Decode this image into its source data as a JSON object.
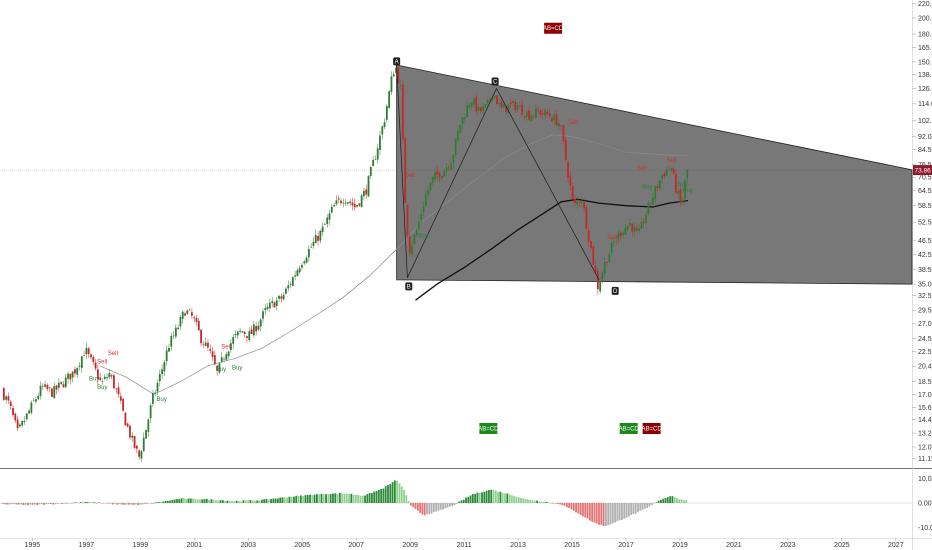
{
  "chart_data": {
    "type": "candlestick",
    "y_scale": "log",
    "ylim": [
      10.5,
      225
    ],
    "xlim": [
      1993.8,
      2027.6
    ],
    "price_ticks": [
      "11.15",
      "12.05",
      "13.20",
      "14.40",
      "15.60",
      "17.00",
      "18.50",
      "20.45",
      "22.50",
      "24.50",
      "27.00",
      "29.50",
      "32.50",
      "35.00",
      "38.50",
      "42.50",
      "46.50",
      "52.50",
      "58.50",
      "64.50",
      "70.50",
      "76.50",
      "84.50",
      "92.00",
      "102.00",
      "114.00",
      "126.00",
      "138.00",
      "150.00",
      "165.00",
      "180.00",
      "200.00",
      "220.00"
    ],
    "year_ticks": [
      "1995",
      "1997",
      "1999",
      "2001",
      "2003",
      "2005",
      "2007",
      "2009",
      "2011",
      "2013",
      "2015",
      "2017",
      "2019",
      "2021",
      "2023",
      "2025",
      "2027"
    ],
    "current_price": "73.86",
    "colors": {
      "up": "#2e7d32",
      "down": "#c62828",
      "wedge": "#444444",
      "badge_green": "#1b8a1b",
      "badge_red": "#8b0000"
    },
    "prices": [
      [
        1993.9,
        17.5
      ],
      [
        1994.2,
        15.8
      ],
      [
        1994.5,
        13.2
      ],
      [
        1994.8,
        14.6
      ],
      [
        1995.1,
        16.2
      ],
      [
        1995.4,
        17.8
      ],
      [
        1995.8,
        17.2
      ],
      [
        1996.2,
        18.4
      ],
      [
        1996.6,
        19.8
      ],
      [
        1997.0,
        22.8
      ],
      [
        1997.3,
        20.5
      ],
      [
        1997.6,
        18.2
      ],
      [
        1997.9,
        19.5
      ],
      [
        1998.2,
        17.0
      ],
      [
        1998.5,
        14.2
      ],
      [
        1998.8,
        12.2
      ],
      [
        1999.0,
        11.3
      ],
      [
        1999.25,
        13.5
      ],
      [
        1999.5,
        16.5
      ],
      [
        1999.8,
        19.5
      ],
      [
        2000.1,
        23.5
      ],
      [
        2000.4,
        26.0
      ],
      [
        2000.7,
        29.5
      ],
      [
        2001.0,
        28.0
      ],
      [
        2001.3,
        24.5
      ],
      [
        2001.6,
        22.5
      ],
      [
        2001.9,
        19.5
      ],
      [
        2002.2,
        22.5
      ],
      [
        2002.5,
        24.5
      ],
      [
        2002.8,
        25.8
      ],
      [
        2003.1,
        25.0
      ],
      [
        2003.4,
        27.0
      ],
      [
        2003.7,
        29.5
      ],
      [
        2004.0,
        31.0
      ],
      [
        2004.3,
        32.0
      ],
      [
        2004.7,
        36.5
      ],
      [
        2005.0,
        40.5
      ],
      [
        2005.4,
        45.0
      ],
      [
        2005.8,
        50.0
      ],
      [
        2006.2,
        58.0
      ],
      [
        2006.6,
        62.0
      ],
      [
        2007.0,
        58.0
      ],
      [
        2007.4,
        64.5
      ],
      [
        2007.8,
        84.0
      ],
      [
        2008.1,
        104.0
      ],
      [
        2008.4,
        140.0
      ],
      [
        2008.5,
        146.0
      ],
      [
        2008.7,
        125.0
      ],
      [
        2008.85,
        62.0
      ],
      [
        2009.0,
        43.5
      ],
      [
        2009.3,
        50.0
      ],
      [
        2009.6,
        62.0
      ],
      [
        2009.9,
        70.0
      ],
      [
        2010.3,
        74.0
      ],
      [
        2010.6,
        80.0
      ],
      [
        2010.9,
        100.0
      ],
      [
        2011.3,
        118.0
      ],
      [
        2011.6,
        108.0
      ],
      [
        2011.9,
        112.0
      ],
      [
        2012.1,
        124.0
      ],
      [
        2012.4,
        110.0
      ],
      [
        2012.7,
        112.0
      ],
      [
        2013.0,
        113.0
      ],
      [
        2013.4,
        106.0
      ],
      [
        2013.8,
        108.0
      ],
      [
        2014.2,
        106.0
      ],
      [
        2014.6,
        100.0
      ],
      [
        2014.9,
        72.0
      ],
      [
        2015.1,
        58.0
      ],
      [
        2015.4,
        62.0
      ],
      [
        2015.7,
        46.0
      ],
      [
        2016.0,
        34.5
      ],
      [
        2016.3,
        41.0
      ],
      [
        2016.6,
        46.0
      ],
      [
        2016.9,
        50.0
      ],
      [
        2017.2,
        52.0
      ],
      [
        2017.5,
        48.0
      ],
      [
        2017.8,
        56.0
      ],
      [
        2018.1,
        64.0
      ],
      [
        2018.4,
        72.0
      ],
      [
        2018.7,
        76.0
      ],
      [
        2018.9,
        65.0
      ],
      [
        2019.1,
        58.0
      ],
      [
        2019.3,
        73.86
      ]
    ],
    "ma_black": [
      [
        2009.2,
        31.5
      ],
      [
        2010.0,
        35.0
      ],
      [
        2011.0,
        39.0
      ],
      [
        2012.0,
        44.0
      ],
      [
        2013.0,
        50.0
      ],
      [
        2014.0,
        56.0
      ],
      [
        2014.6,
        60.0
      ],
      [
        2015.2,
        61.0
      ],
      [
        2016.0,
        59.5
      ],
      [
        2017.0,
        58.5
      ],
      [
        2018.0,
        58.0
      ],
      [
        2018.6,
        59.5
      ],
      [
        2019.3,
        60.5
      ]
    ],
    "ma_gray": [
      [
        1997.5,
        20.5
      ],
      [
        1998.5,
        19.0
      ],
      [
        1999.5,
        17.0
      ],
      [
        2000.5,
        18.5
      ],
      [
        2001.5,
        20.5
      ],
      [
        2002.5,
        21.5
      ],
      [
        2003.5,
        23.0
      ],
      [
        2004.5,
        25.5
      ],
      [
        2005.5,
        28.5
      ],
      [
        2006.5,
        32.0
      ],
      [
        2007.5,
        37.0
      ],
      [
        2008.5,
        44.0
      ],
      [
        2009.5,
        53.0
      ],
      [
        2010.5,
        61.0
      ],
      [
        2011.5,
        70.0
      ],
      [
        2012.5,
        80.0
      ],
      [
        2013.5,
        88.0
      ],
      [
        2014.3,
        93.0
      ],
      [
        2015.0,
        92.0
      ],
      [
        2016.0,
        88.0
      ],
      [
        2017.0,
        83.0
      ],
      [
        2018.0,
        82.0
      ],
      [
        2019.3,
        81.0
      ]
    ],
    "wedge": {
      "upper": [
        [
          2008.5,
          147.0
        ],
        [
          2027.6,
          74.0
        ]
      ],
      "lower": [
        [
          2008.5,
          36.0
        ],
        [
          2027.6,
          35.0
        ]
      ]
    },
    "zigzag": [
      [
        2008.5,
        147.0
      ],
      [
        2008.9,
        36.5
      ],
      [
        2012.2,
        126.0
      ],
      [
        2016.0,
        36.0
      ]
    ],
    "pattern_points": [
      {
        "label": "A",
        "x": 2008.5,
        "y": 150.5
      },
      {
        "label": "B",
        "x": 2008.95,
        "y": 34.5
      },
      {
        "label": "C",
        "x": 2012.15,
        "y": 132.0
      },
      {
        "label": "D",
        "x": 2016.6,
        "y": 33.5
      }
    ],
    "badges": [
      {
        "label": "AB=CD",
        "x": 2014.3,
        "y": 187.0,
        "color": "red"
      },
      {
        "label": "AB=CD",
        "x": 2011.9,
        "y": 13.6,
        "color": "green"
      },
      {
        "label": "AB=CD",
        "x": 2017.1,
        "y": 13.6,
        "color": "green"
      },
      {
        "label": "AB=CD",
        "x": 2017.95,
        "y": 13.6,
        "color": "red"
      }
    ],
    "signals": [
      {
        "label": "Sell",
        "x": 1997.8,
        "y": 22.0,
        "color": "red"
      },
      {
        "label": "Sell",
        "x": 1997.4,
        "y": 20.8,
        "color": "red"
      },
      {
        "label": "Buy",
        "x": 1997.1,
        "y": 18.6,
        "color": "green"
      },
      {
        "label": "Buy",
        "x": 1997.4,
        "y": 17.6,
        "color": "green"
      },
      {
        "label": "Sell",
        "x": 2002.0,
        "y": 23.0,
        "color": "red"
      },
      {
        "label": "Buy",
        "x": 2001.8,
        "y": 19.8,
        "color": "green"
      },
      {
        "label": "Buy",
        "x": 2002.4,
        "y": 20.0,
        "color": "green"
      },
      {
        "label": "Buy",
        "x": 1999.6,
        "y": 16.3,
        "color": "green"
      },
      {
        "label": "Sell",
        "x": 2008.8,
        "y": 70.5,
        "color": "red"
      },
      {
        "label": "Buy",
        "x": 2009.3,
        "y": 47.5,
        "color": "green"
      },
      {
        "label": "Sell",
        "x": 2014.85,
        "y": 100.0,
        "color": "red"
      },
      {
        "label": "Sell",
        "x": 2016.3,
        "y": 47.0,
        "color": "red"
      },
      {
        "label": "Sell",
        "x": 2017.4,
        "y": 74.0,
        "color": "red"
      },
      {
        "label": "Buy",
        "x": 2017.6,
        "y": 65.5,
        "color": "green"
      },
      {
        "label": "Sell",
        "x": 2018.5,
        "y": 78.0,
        "color": "red"
      },
      {
        "label": "Buy",
        "x": 2018.9,
        "y": 66.5,
        "color": "green"
      },
      {
        "label": "Buy",
        "x": 2019.1,
        "y": 64.0,
        "color": "green"
      }
    ],
    "oscillator": {
      "ylim": [
        -13.5,
        13.5
      ],
      "ticks": [
        "10.00",
        "0.00",
        "-10.00"
      ],
      "values": [
        [
          1993.9,
          -0.5
        ],
        [
          1995.0,
          -0.8
        ],
        [
          1996.0,
          -0.3
        ],
        [
          1997.0,
          0.5
        ],
        [
          1998.0,
          -0.5
        ],
        [
          1999.0,
          -0.8
        ],
        [
          1999.8,
          0.5
        ],
        [
          2000.5,
          1.8
        ],
        [
          2001.5,
          1.5
        ],
        [
          2002.5,
          0.8
        ],
        [
          2003.5,
          1.2
        ],
        [
          2004.5,
          2.5
        ],
        [
          2005.5,
          3.5
        ],
        [
          2006.5,
          4.0
        ],
        [
          2007.3,
          3.0
        ],
        [
          2008.0,
          6.0
        ],
        [
          2008.5,
          9.5
        ],
        [
          2008.8,
          5.0
        ],
        [
          2009.0,
          -1.0
        ],
        [
          2009.5,
          -5.0
        ],
        [
          2010.0,
          -3.5
        ],
        [
          2010.6,
          -1.0
        ],
        [
          2011.3,
          3.5
        ],
        [
          2012.0,
          5.5
        ],
        [
          2012.7,
          3.5
        ],
        [
          2013.3,
          1.5
        ],
        [
          2014.0,
          0.5
        ],
        [
          2014.6,
          -0.5
        ],
        [
          2015.2,
          -4.0
        ],
        [
          2015.8,
          -8.0
        ],
        [
          2016.2,
          -9.5
        ],
        [
          2016.6,
          -8.0
        ],
        [
          2017.2,
          -5.0
        ],
        [
          2017.8,
          -2.0
        ],
        [
          2018.3,
          1.5
        ],
        [
          2018.7,
          3.0
        ],
        [
          2019.0,
          1.5
        ],
        [
          2019.3,
          1.0
        ]
      ]
    }
  }
}
